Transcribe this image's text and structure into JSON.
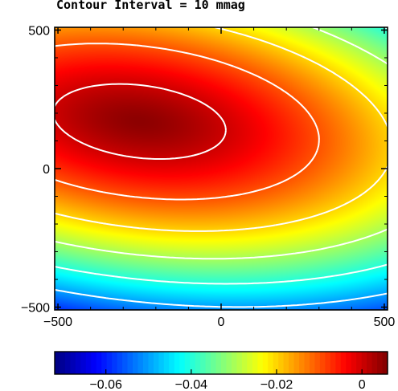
{
  "chart_data": {
    "type": "heatmap",
    "title": "Contour Interval = 10 mmag",
    "xlabel": "",
    "ylabel": "",
    "xlim": [
      -510,
      510
    ],
    "ylim": [
      -510,
      510
    ],
    "x_ticks": [
      "−500",
      "0",
      "500"
    ],
    "y_ticks": [
      "500",
      "0",
      "−500"
    ],
    "colorbar": {
      "range": [
        -0.072,
        0.006
      ],
      "ticks": [
        "−0.06",
        "−0.04",
        "−0.02",
        "0"
      ],
      "colormap": "jet"
    },
    "contours": [
      {
        "level": 0.0,
        "style": "solid",
        "color": "#ffffff"
      },
      {
        "level": -0.01,
        "style": "dashed",
        "color": "#ffffff"
      },
      {
        "level": -0.02,
        "style": "dashed",
        "color": "#ffffff"
      },
      {
        "level": -0.03,
        "style": "dashed",
        "color": "#ffffff"
      },
      {
        "level": -0.04,
        "style": "dashed",
        "color": "#ffffff"
      },
      {
        "level": -0.05,
        "style": "dashed",
        "color": "#ffffff"
      },
      {
        "level": -0.06,
        "style": "dashed",
        "color": "#ffffff"
      }
    ],
    "field": {
      "peak_value": 0.005,
      "peak_location": [
        -250,
        170
      ],
      "min_value": -0.07,
      "min_location": [
        500,
        -500
      ]
    }
  }
}
